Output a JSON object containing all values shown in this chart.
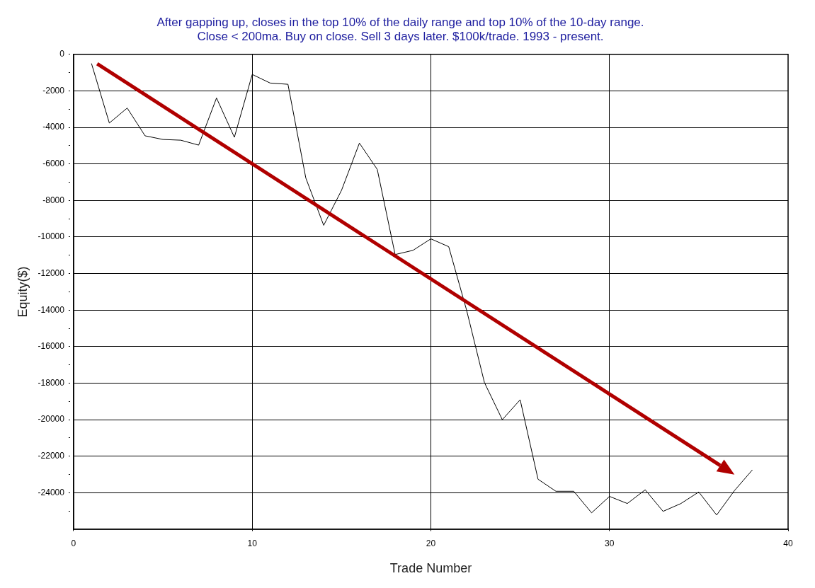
{
  "chart_data": {
    "type": "line",
    "title": "After gapping up, closes in the top 10% of the daily range and top 10% of the 10-day range.\nClose < 200ma. Buy on close. Sell 3 days later. $100k/trade. 1993 - present.",
    "xlabel": "Trade Number",
    "ylabel": "Equity($)",
    "x": [
      1,
      2,
      3,
      4,
      5,
      6,
      7,
      8,
      9,
      10,
      11,
      12,
      13,
      14,
      15,
      16,
      17,
      18,
      19,
      20,
      21,
      22,
      23,
      24,
      25,
      26,
      27,
      28,
      29,
      30,
      31,
      32,
      33,
      34,
      35,
      36,
      37,
      38
    ],
    "series": [
      {
        "color": "#000000",
        "values": [
          -500,
          -3760,
          -2940,
          -4460,
          -4660,
          -4700,
          -4970,
          -2390,
          -4540,
          -1100,
          -1570,
          -1640,
          -6770,
          -9360,
          -7440,
          -4860,
          -6300,
          -10960,
          -10730,
          -10100,
          -10530,
          -14000,
          -17970,
          -20000,
          -18910,
          -23260,
          -23920,
          -23920,
          -25100,
          -24200,
          -24590,
          -23840,
          -25020,
          -24590,
          -23960,
          -25220,
          -23880,
          -22750
        ]
      }
    ],
    "xlim": [
      0,
      40
    ],
    "xticks": [
      0,
      10,
      20,
      30,
      40
    ],
    "ylim": [
      -26000,
      0
    ],
    "yticks": [
      0,
      {
        "value": -1000,
        "label": null
      },
      -2000,
      {
        "value": -3000,
        "label": null
      },
      -4000,
      {
        "value": -5000,
        "label": null
      },
      -6000,
      {
        "value": -7000,
        "label": null
      },
      -8000,
      {
        "value": -9000,
        "label": null
      },
      -10000,
      {
        "value": -11000,
        "label": null
      },
      -12000,
      {
        "value": -13000,
        "label": null
      },
      -14000,
      {
        "value": -15000,
        "label": null
      },
      -16000,
      {
        "value": -17000,
        "label": null
      },
      -18000,
      {
        "value": -19000,
        "label": null
      },
      -20000,
      {
        "value": -21000,
        "label": null
      },
      -22000,
      {
        "value": -23000,
        "label": null
      },
      -24000,
      {
        "value": -25000,
        "label": null
      }
    ],
    "grid": true,
    "legend": false,
    "marker": "none",
    "line_style": "solid"
  }
}
